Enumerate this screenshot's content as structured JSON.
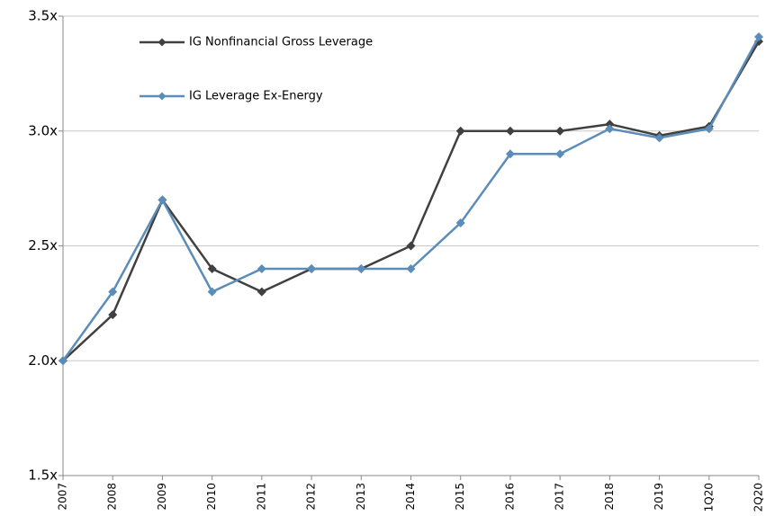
{
  "chart_data": {
    "type": "line",
    "categories": [
      "2007",
      "2008",
      "2009",
      "2010",
      "2011",
      "2012",
      "2013",
      "2014",
      "2015",
      "2016",
      "2017",
      "2018",
      "2019",
      "1Q20",
      "2Q20"
    ],
    "series": [
      {
        "name": "IG Nonfinancial Gross Leverage",
        "color": "#404040",
        "values": [
          2.0,
          2.2,
          2.7,
          2.4,
          2.3,
          2.4,
          2.4,
          2.5,
          3.0,
          3.0,
          3.0,
          3.03,
          2.98,
          3.02,
          3.39
        ]
      },
      {
        "name": "IG Leverage Ex-Energy",
        "color": "#5b8db8",
        "values": [
          2.0,
          2.3,
          2.7,
          2.3,
          2.4,
          2.4,
          2.4,
          2.4,
          2.6,
          2.9,
          2.9,
          3.01,
          2.97,
          3.01,
          3.41
        ]
      }
    ],
    "ylim": [
      1.5,
      3.5
    ],
    "yticks": [
      {
        "value": 1.5,
        "label": "1.5x"
      },
      {
        "value": 2.0,
        "label": "2.0x"
      },
      {
        "value": 2.5,
        "label": "2.5x"
      },
      {
        "value": 3.0,
        "label": "3.0x"
      },
      {
        "value": 3.5,
        "label": "3.5x"
      }
    ],
    "grid": true,
    "legend": "upper left"
  }
}
